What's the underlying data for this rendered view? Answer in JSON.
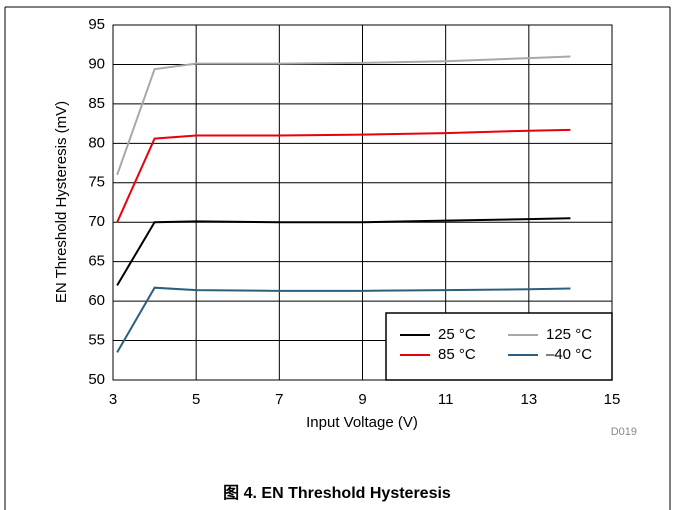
{
  "chart_data": {
    "type": "line",
    "x_label": "Input Voltage (V)",
    "y_label": "EN Threshold Hysteresis (mV)",
    "note": "D019",
    "caption": "图 4. EN Threshold Hysteresis",
    "x": [
      3.1,
      4,
      5,
      7,
      9,
      11,
      13,
      14
    ],
    "series": [
      {
        "name": "25 °C",
        "color": "#000000",
        "values": [
          62,
          70,
          70.1,
          70,
          70,
          70.2,
          70.4,
          70.5
        ]
      },
      {
        "name": "85 °C",
        "color": "#e8000b",
        "values": [
          70,
          80.6,
          81,
          81,
          81.1,
          81.3,
          81.6,
          81.7
        ]
      },
      {
        "name": "125 °C",
        "color": "#a8a8a8",
        "values": [
          76,
          89.4,
          90.1,
          90.1,
          90.2,
          90.4,
          90.8,
          91
        ]
      },
      {
        "name": "–40 °C",
        "color": "#2b5f7c",
        "values": [
          53.5,
          61.7,
          61.4,
          61.3,
          61.3,
          61.4,
          61.5,
          61.6
        ]
      }
    ],
    "xlim": [
      3,
      15
    ],
    "xticks": [
      3,
      5,
      7,
      9,
      11,
      13,
      15
    ],
    "ylim": [
      50,
      95
    ],
    "yticks": [
      50,
      55,
      60,
      65,
      70,
      75,
      80,
      85,
      90,
      95
    ],
    "grid": true,
    "legend": "lower-right"
  }
}
